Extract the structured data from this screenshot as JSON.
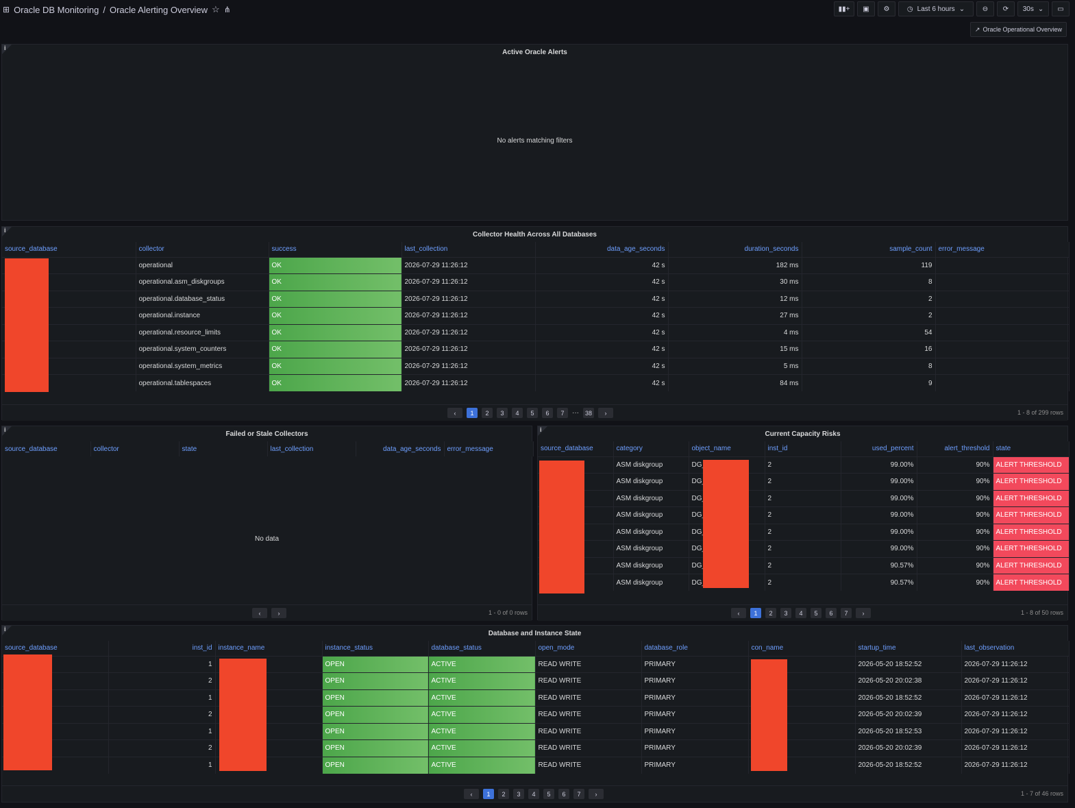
{
  "header": {
    "folder": "Oracle DB Monitoring",
    "title": "Oracle Alerting Overview",
    "time_range": "Last 6 hours",
    "refresh": "30s",
    "link": "Oracle Operational Overview"
  },
  "alerts_panel": {
    "title": "Active Oracle Alerts",
    "empty": "No alerts matching filters"
  },
  "collector_panel": {
    "title": "Collector Health Across All Databases",
    "columns": [
      "source_database",
      "collector",
      "success",
      "last_collection",
      "data_age_seconds",
      "duration_seconds",
      "sample_count",
      "error_message"
    ],
    "rows": [
      [
        "",
        "operational",
        "OK",
        "2026-07-29 11:26:12",
        "42 s",
        "182 ms",
        "119",
        ""
      ],
      [
        "",
        "operational.asm_diskgroups",
        "OK",
        "2026-07-29 11:26:12",
        "42 s",
        "30 ms",
        "8",
        ""
      ],
      [
        "",
        "operational.database_status",
        "OK",
        "2026-07-29 11:26:12",
        "42 s",
        "12 ms",
        "2",
        ""
      ],
      [
        "",
        "operational.instance",
        "OK",
        "2026-07-29 11:26:12",
        "42 s",
        "27 ms",
        "2",
        ""
      ],
      [
        "",
        "operational.resource_limits",
        "OK",
        "2026-07-29 11:26:12",
        "42 s",
        "4 ms",
        "54",
        ""
      ],
      [
        "",
        "operational.system_counters",
        "OK",
        "2026-07-29 11:26:12",
        "42 s",
        "15 ms",
        "16",
        ""
      ],
      [
        "",
        "operational.system_metrics",
        "OK",
        "2026-07-29 11:26:12",
        "42 s",
        "5 ms",
        "8",
        ""
      ],
      [
        "",
        "operational.tablespaces",
        "OK",
        "2026-07-29 11:26:12",
        "42 s",
        "84 ms",
        "9",
        ""
      ]
    ],
    "pages": [
      "1",
      "2",
      "3",
      "4",
      "5",
      "6",
      "7",
      "···",
      "38"
    ],
    "rows_info": "1 - 8 of 299 rows"
  },
  "failed_panel": {
    "title": "Failed or Stale Collectors",
    "columns": [
      "source_database",
      "collector",
      "state",
      "last_collection",
      "data_age_seconds",
      "error_message"
    ],
    "empty": "No data",
    "rows_info": "1 - 0 of 0 rows"
  },
  "capacity_panel": {
    "title": "Current Capacity Risks",
    "columns": [
      "source_database",
      "category",
      "object_name",
      "inst_id",
      "used_percent",
      "alert_threshold",
      "state"
    ],
    "rows": [
      [
        "",
        "ASM diskgroup",
        "DG_",
        "2",
        "99.00%",
        "90%",
        "ALERT THRESHOLD"
      ],
      [
        "",
        "ASM diskgroup",
        "DG_",
        "2",
        "99.00%",
        "90%",
        "ALERT THRESHOLD"
      ],
      [
        "",
        "ASM diskgroup",
        "DG_",
        "2",
        "99.00%",
        "90%",
        "ALERT THRESHOLD"
      ],
      [
        "",
        "ASM diskgroup",
        "DG_",
        "2",
        "99.00%",
        "90%",
        "ALERT THRESHOLD"
      ],
      [
        "",
        "ASM diskgroup",
        "DG_",
        "2",
        "99.00%",
        "90%",
        "ALERT THRESHOLD"
      ],
      [
        "",
        "ASM diskgroup",
        "DG_",
        "2",
        "99.00%",
        "90%",
        "ALERT THRESHOLD"
      ],
      [
        "",
        "ASM diskgroup",
        "DG_",
        "2",
        "90.57%",
        "90%",
        "ALERT THRESHOLD"
      ],
      [
        "",
        "ASM diskgroup",
        "DG_",
        "2",
        "90.57%",
        "90%",
        "ALERT THRESHOLD"
      ]
    ],
    "pages": [
      "1",
      "2",
      "3",
      "4",
      "5",
      "6",
      "7"
    ],
    "rows_info": "1 - 8 of 50 rows"
  },
  "state_panel": {
    "title": "Database and Instance State",
    "columns": [
      "source_database",
      "inst_id",
      "instance_name",
      "instance_status",
      "database_status",
      "open_mode",
      "database_role",
      "con_name",
      "startup_time",
      "last_observation"
    ],
    "rows": [
      [
        "",
        "1",
        "",
        "OPEN",
        "ACTIVE",
        "READ WRITE",
        "PRIMARY",
        "",
        "2026-05-20 18:52:52",
        "2026-07-29 11:26:12"
      ],
      [
        "",
        "2",
        "",
        "OPEN",
        "ACTIVE",
        "READ WRITE",
        "PRIMARY",
        "",
        "2026-05-20 20:02:38",
        "2026-07-29 11:26:12"
      ],
      [
        "",
        "1",
        "",
        "OPEN",
        "ACTIVE",
        "READ WRITE",
        "PRIMARY",
        "",
        "2026-05-20 18:52:52",
        "2026-07-29 11:26:12"
      ],
      [
        "",
        "2",
        "",
        "OPEN",
        "ACTIVE",
        "READ WRITE",
        "PRIMARY",
        "",
        "2026-05-20 20:02:39",
        "2026-07-29 11:26:12"
      ],
      [
        "",
        "1",
        "",
        "OPEN",
        "ACTIVE",
        "READ WRITE",
        "PRIMARY",
        "",
        "2026-05-20 18:52:53",
        "2026-07-29 11:26:12"
      ],
      [
        "",
        "2",
        "",
        "OPEN",
        "ACTIVE",
        "READ WRITE",
        "PRIMARY",
        "",
        "2026-05-20 20:02:39",
        "2026-07-29 11:26:12"
      ],
      [
        "",
        "1",
        "",
        "OPEN",
        "ACTIVE",
        "READ WRITE",
        "PRIMARY",
        "",
        "2026-05-20 18:52:52",
        "2026-07-29 11:26:12"
      ]
    ],
    "pages": [
      "1",
      "2",
      "3",
      "4",
      "5",
      "6",
      "7"
    ],
    "rows_info": "1 - 7 of 46 rows"
  },
  "colors": {
    "ok": "#73bf69",
    "alert": "#f2495c",
    "redaction": "#f0462b",
    "link": "#6e9fff",
    "page_active": "#3d71d9"
  }
}
